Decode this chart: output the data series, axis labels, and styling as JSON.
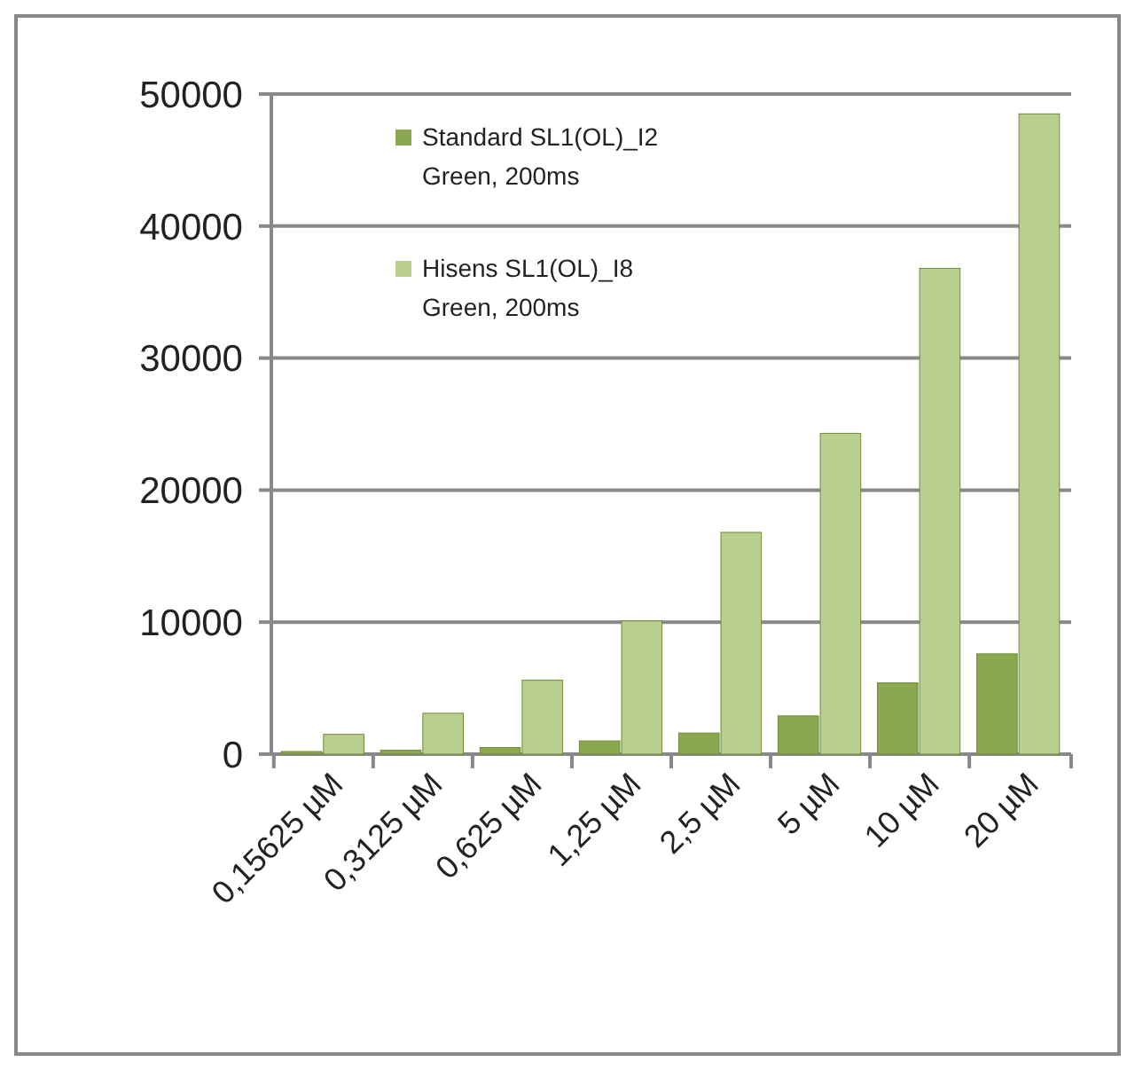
{
  "chart_data": {
    "type": "bar",
    "categories": [
      "0,15625 µM",
      "0,3125 µM",
      "0,625 µM",
      "1,25 µM",
      "2,5 µM",
      "5 µM",
      "10 µM",
      "20 µM"
    ],
    "series": [
      {
        "name": "Standard SL1(OL)_I2\nGreen, 200ms",
        "color": "#8aa84e",
        "values": [
          200,
          300,
          500,
          1000,
          1600,
          2900,
          5400,
          7600
        ]
      },
      {
        "name": "Hisens SL1(OL)_I8\nGreen, 200ms",
        "color": "#b9cf8f",
        "values": [
          1500,
          3100,
          5600,
          10100,
          16800,
          24300,
          36800,
          48500
        ]
      }
    ],
    "ylim": [
      0,
      50000
    ],
    "yticks": [
      0,
      10000,
      20000,
      30000,
      40000,
      50000
    ],
    "grid": "y",
    "legend": "top left"
  }
}
